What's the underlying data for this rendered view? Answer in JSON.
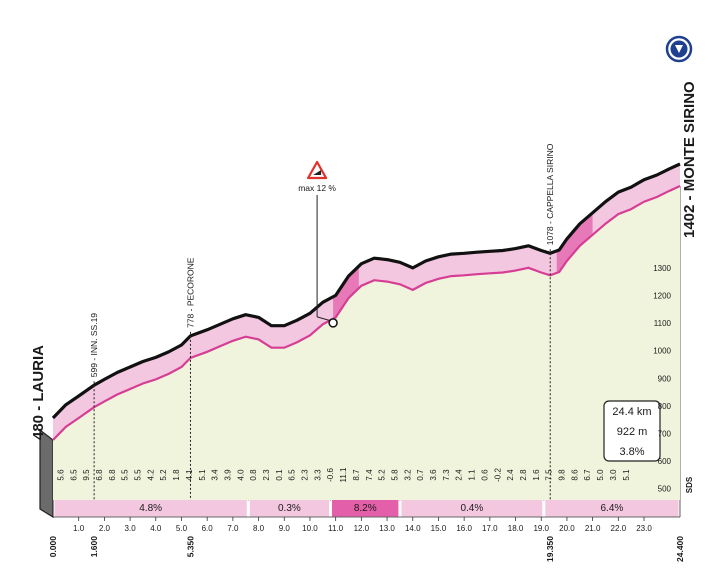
{
  "chart_data": {
    "type": "area",
    "title": "",
    "xlabel": "",
    "ylabel": "",
    "xlim": [
      0,
      24.4
    ],
    "ylim": [
      480,
      1402
    ],
    "start": {
      "label": "480 - LAURIA",
      "km": "0.000"
    },
    "finish": {
      "label": "1402 - MONTE SIRINO",
      "km": "24.400"
    },
    "summary": {
      "distance": "24.4 km",
      "elevation_gain": "922 m",
      "avg_gradient": "3.8%"
    },
    "elevation_ticks": [
      "500",
      "600",
      "700",
      "800",
      "900",
      "1000",
      "1100",
      "1200",
      "1300"
    ],
    "km_ticks": [
      "1.0",
      "2.0",
      "3.0",
      "4.0",
      "5.0",
      "6.0",
      "7.0",
      "8.0",
      "9.0",
      "10.0",
      "11.0",
      "12.0",
      "13.0",
      "14.0",
      "15.0",
      "16.0",
      "17.0",
      "18.0",
      "19.0",
      "20.0",
      "21.0",
      "22.0",
      "23.0"
    ],
    "km_markers": [
      "1.600",
      "5.350",
      "19.350"
    ],
    "waypoints": [
      {
        "label": "599 - INN. SS.19",
        "km": 1.6,
        "alt": 599
      },
      {
        "label": "778 - PECORONE",
        "km": 5.35,
        "alt": 778
      },
      {
        "label": "1078 - CAPPELLA SIRINO",
        "km": 19.35,
        "alt": 1078
      }
    ],
    "steepest": {
      "label": "max 12 %",
      "km": 10.9,
      "alt": 905
    },
    "profile": {
      "km": [
        0,
        0.5,
        1.0,
        1.6,
        2.0,
        2.5,
        3.0,
        3.5,
        4.0,
        4.5,
        5.0,
        5.35,
        6.0,
        6.5,
        7.0,
        7.5,
        8.0,
        8.5,
        9.0,
        9.5,
        10.0,
        10.5,
        11.0,
        11.5,
        12.0,
        12.5,
        13.0,
        13.5,
        14.0,
        14.5,
        15.0,
        15.5,
        16.0,
        16.5,
        17.0,
        17.5,
        18.0,
        18.5,
        19.0,
        19.35,
        19.7,
        20.0,
        20.5,
        21.0,
        21.5,
        22.0,
        22.5,
        23.0,
        23.5,
        24.0,
        24.4
      ],
      "alt": [
        480,
        528,
        560,
        599,
        620,
        645,
        665,
        685,
        700,
        720,
        745,
        778,
        800,
        820,
        840,
        855,
        845,
        815,
        815,
        835,
        860,
        900,
        925,
        995,
        1040,
        1060,
        1055,
        1045,
        1025,
        1050,
        1065,
        1075,
        1078,
        1082,
        1085,
        1088,
        1095,
        1105,
        1088,
        1078,
        1090,
        1130,
        1185,
        1225,
        1265,
        1300,
        1318,
        1345,
        1362,
        1385,
        1402
      ]
    },
    "segments": [
      {
        "from": 0,
        "to": 7.6,
        "gradient": "4.8%"
      },
      {
        "from": 7.6,
        "to": 10.8,
        "gradient": "0.3%"
      },
      {
        "from": 10.8,
        "to": 13.5,
        "gradient": "8.2%"
      },
      {
        "from": 13.5,
        "to": 19.1,
        "gradient": "0.4%"
      },
      {
        "from": 19.1,
        "to": 24.4,
        "gradient": "6.4%"
      }
    ],
    "km_gradients": [
      "5.6",
      "6.5",
      "9.5",
      "6.8",
      "6.8",
      "5.5",
      "5.5",
      "4.2",
      "5.2",
      "1.8",
      "4.1",
      "5.1",
      "3.4",
      "3.9",
      "4.0",
      "0.8",
      "2.3",
      "0.1",
      "6.5",
      "2.3",
      "3.3",
      "-0.6",
      "11.1",
      "8.7",
      "7.4",
      "5.2",
      "5.8",
      "3.2",
      "0.7",
      "3.6",
      "7.3",
      "2.4",
      "1.1",
      "0.6",
      "-0.2",
      "2.4",
      "2.8",
      "1.6",
      "7.5",
      "9.8",
      "8.6",
      "6.7",
      "5.0",
      "3.0",
      "5.1"
    ],
    "colors": {
      "fill": "#f0f4dc",
      "band": "#f4c7e1",
      "band_steep": "#e45fa9",
      "line": "#d63d94",
      "ridge": "#111111",
      "badge": "#1f3f8f"
    },
    "badge_icon": "flag-down-icon",
    "brand": "SDS"
  }
}
